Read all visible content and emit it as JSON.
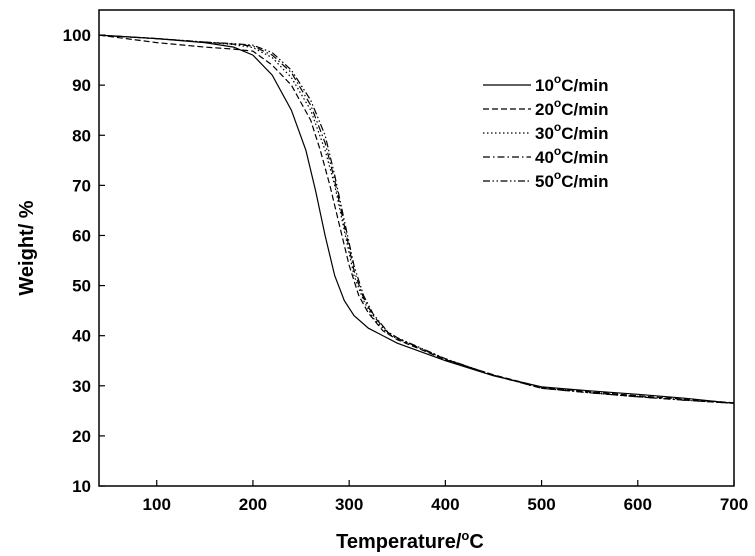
{
  "chart_data": {
    "type": "line",
    "xlabel": "Temperature/",
    "xlabel_unit": "C",
    "ylabel": "Weight/ %",
    "xlim": [
      40,
      700
    ],
    "ylim": [
      10,
      105
    ],
    "x_ticks": [
      100,
      200,
      300,
      400,
      500,
      600,
      700
    ],
    "y_ticks": [
      10,
      20,
      30,
      40,
      50,
      60,
      70,
      80,
      90,
      100
    ],
    "grid": false,
    "legend_position": "top-right",
    "colors": {
      "line": "#000000",
      "background": "#ffffff"
    },
    "series": [
      {
        "name": "10",
        "unit": "C/min",
        "dash": "solid",
        "x": [
          40,
          100,
          150,
          180,
          200,
          220,
          240,
          255,
          265,
          275,
          285,
          295,
          305,
          320,
          350,
          400,
          450,
          500,
          550,
          600,
          650,
          700
        ],
        "y": [
          100,
          99.3,
          98.5,
          97.6,
          96,
          92,
          85,
          77,
          69,
          60,
          52,
          47,
          44,
          41.5,
          38.5,
          35,
          32,
          29.8,
          29,
          28.3,
          27.5,
          26.5
        ]
      },
      {
        "name": "20",
        "unit": "C/min",
        "dash": "dashed",
        "x": [
          40,
          100,
          150,
          180,
          200,
          220,
          240,
          260,
          270,
          280,
          290,
          300,
          310,
          320,
          335,
          350,
          400,
          450,
          500,
          550,
          600,
          650,
          700
        ],
        "y": [
          100,
          98.5,
          97.6,
          97.2,
          96.8,
          94,
          90,
          83,
          77,
          70,
          62,
          54,
          48,
          44.5,
          41,
          39.2,
          35.2,
          32.2,
          29.7,
          28.8,
          28,
          27.3,
          26.6
        ]
      },
      {
        "name": "30",
        "unit": "C/min",
        "dash": "dotted",
        "x": [
          40,
          100,
          150,
          180,
          200,
          220,
          240,
          260,
          275,
          285,
          295,
          305,
          315,
          325,
          340,
          350,
          400,
          450,
          500,
          550,
          600,
          650,
          700
        ],
        "y": [
          100,
          99.3,
          98.6,
          98.1,
          97.5,
          95.5,
          91.5,
          85,
          77,
          70,
          61,
          52,
          47,
          43.5,
          40.5,
          39.4,
          35.3,
          32.1,
          29.6,
          28.7,
          27.9,
          27.2,
          26.6
        ]
      },
      {
        "name": "40",
        "unit": "C/min",
        "dash": "dash-dot",
        "x": [
          40,
          100,
          150,
          180,
          200,
          220,
          240,
          260,
          275,
          285,
          295,
          305,
          315,
          325,
          340,
          350,
          400,
          450,
          500,
          550,
          600,
          650,
          700
        ],
        "y": [
          100,
          99.3,
          98.6,
          98.2,
          97.8,
          96,
          92.5,
          86,
          78.5,
          71,
          62,
          53,
          47.5,
          44,
          40.7,
          39.5,
          35.3,
          32.1,
          29.5,
          28.6,
          27.8,
          27.1,
          26.5
        ]
      },
      {
        "name": "50",
        "unit": "C/min",
        "dash": "dash-dot-dot",
        "x": [
          40,
          100,
          150,
          180,
          200,
          220,
          240,
          260,
          275,
          285,
          295,
          305,
          315,
          325,
          340,
          350,
          400,
          450,
          500,
          550,
          600,
          650,
          700
        ],
        "y": [
          100,
          99.3,
          98.6,
          98.3,
          98,
          96.5,
          93,
          87,
          80,
          72,
          63,
          54,
          48,
          44.3,
          40.8,
          39.6,
          35.4,
          32.1,
          29.5,
          28.6,
          27.8,
          27.1,
          26.5
        ]
      }
    ]
  }
}
